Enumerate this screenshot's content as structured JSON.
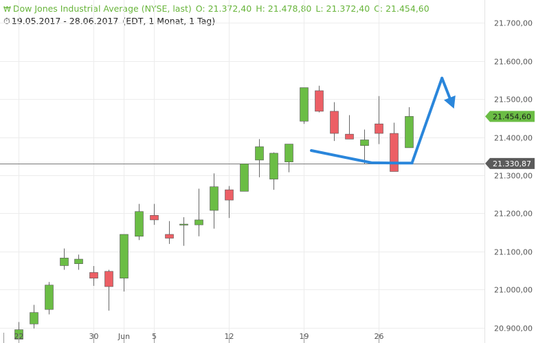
{
  "header": {
    "chart_icon": "candlestick-icon",
    "title": "Dow Jones Industrial Average (NYSE, last)",
    "open": "O: 21.372,40",
    "high": "H: 21.478,80",
    "low": "L: 21.372,40",
    "close": "C: 21.454,60",
    "date_range": "19.05.2017 - 28.06.2017",
    "settings": "(EDT, 1 Monat, 1 Tag)",
    "clock_icon": "clock-icon"
  },
  "colors": {
    "up": "#6bbd45",
    "down": "#ec5f65",
    "annotation": "#2a86db",
    "grid": "#ececec",
    "ref_line": "#777777"
  },
  "chart_data": {
    "type": "candlestick",
    "title": "Dow Jones Industrial Average (NYSE, last)",
    "ylim": [
      20860,
      21760
    ],
    "y_ticks": [
      20900,
      21000,
      21100,
      21200,
      21300,
      21400,
      21500,
      21600,
      21700
    ],
    "y_tick_labels": [
      "20.900,00",
      "21.000,00",
      "21.100,00",
      "21.200,00",
      "21.300,00",
      "21.400,00",
      "21.500,00",
      "21.600,00",
      "21.700,00"
    ],
    "x_tick_labels": [
      {
        "label": "22",
        "index": 0
      },
      {
        "label": "30",
        "index": 5
      },
      {
        "label": "Jun",
        "index": 7
      },
      {
        "label": "5",
        "index": 9
      },
      {
        "label": "12",
        "index": 14
      },
      {
        "label": "19",
        "index": 19
      },
      {
        "label": "26",
        "index": 24
      }
    ],
    "candles": [
      {
        "o": 20870,
        "h": 20915,
        "l": 20860,
        "c": 20895
      },
      {
        "o": 20910,
        "h": 20960,
        "l": 20898,
        "c": 20940
      },
      {
        "o": 20948,
        "h": 21020,
        "l": 20935,
        "c": 21012
      },
      {
        "o": 21063,
        "h": 21108,
        "l": 21052,
        "c": 21083
      },
      {
        "o": 21068,
        "h": 21092,
        "l": 21052,
        "c": 21080
      },
      {
        "o": 21045,
        "h": 21062,
        "l": 21010,
        "c": 21030
      },
      {
        "o": 21048,
        "h": 21052,
        "l": 20945,
        "c": 21008
      },
      {
        "o": 21030,
        "h": 21145,
        "l": 20995,
        "c": 21145
      },
      {
        "o": 21140,
        "h": 21225,
        "l": 21130,
        "c": 21205
      },
      {
        "o": 21195,
        "h": 21225,
        "l": 21170,
        "c": 21183
      },
      {
        "o": 21145,
        "h": 21180,
        "l": 21120,
        "c": 21135
      },
      {
        "o": 21170,
        "h": 21190,
        "l": 21115,
        "c": 21172
      },
      {
        "o": 21170,
        "h": 21265,
        "l": 21140,
        "c": 21183
      },
      {
        "o": 21208,
        "h": 21305,
        "l": 21160,
        "c": 21270
      },
      {
        "o": 21262,
        "h": 21272,
        "l": 21188,
        "c": 21235
      },
      {
        "o": 21258,
        "h": 21330,
        "l": 21258,
        "c": 21330
      },
      {
        "o": 21340,
        "h": 21395,
        "l": 21295,
        "c": 21375
      },
      {
        "o": 21290,
        "h": 21360,
        "l": 21262,
        "c": 21358
      },
      {
        "o": 21335,
        "h": 21382,
        "l": 21308,
        "c": 21382
      },
      {
        "o": 21442,
        "h": 21530,
        "l": 21435,
        "c": 21530
      },
      {
        "o": 21522,
        "h": 21535,
        "l": 21465,
        "c": 21468
      },
      {
        "o": 21468,
        "h": 21492,
        "l": 21390,
        "c": 21410
      },
      {
        "o": 21408,
        "h": 21458,
        "l": 21395,
        "c": 21395
      },
      {
        "o": 21378,
        "h": 21420,
        "l": 21330,
        "c": 21393
      },
      {
        "o": 21435,
        "h": 21508,
        "l": 21382,
        "c": 21410
      },
      {
        "o": 21410,
        "h": 21438,
        "l": 21310,
        "c": 21310
      },
      {
        "o": 21372.4,
        "h": 21478.8,
        "l": 21372.4,
        "c": 21454.6
      }
    ],
    "current_price": {
      "value": 21454.6,
      "label": "21.454,60"
    },
    "reference_line": {
      "value": 21330.87,
      "label": "21.330,87"
    },
    "annotation_path": [
      {
        "i": 19.5,
        "v": 21365
      },
      {
        "i": 23.5,
        "v": 21333
      },
      {
        "i": 25.3,
        "v": 21332
      },
      {
        "i": 26.2,
        "v": 21332
      },
      {
        "i": 28.2,
        "v": 21555
      }
    ],
    "annotation_arrow_tip": {
      "i": 29.0,
      "v": 21475
    }
  }
}
